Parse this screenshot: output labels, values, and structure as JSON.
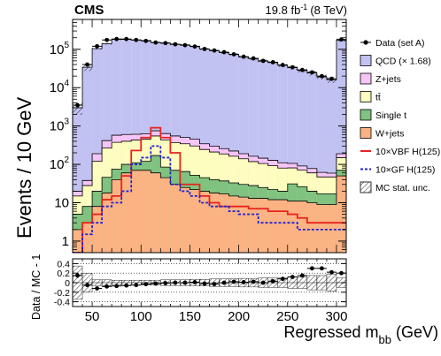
{
  "chart_data": {
    "type": "histogram",
    "header": {
      "experiment": "CMS",
      "lumi_value": "19.8 fb",
      "lumi_exp": "-1",
      "lumi_energy": "(8 TeV)"
    },
    "ylabel": "Events / 10 GeV",
    "xlabel": {
      "main": "Regressed m",
      "sub": "bb",
      "unit": " (GeV)"
    },
    "ratio_ylabel": "Data / MC - 1",
    "xlim": [
      30,
      310
    ],
    "ylim": [
      0.5,
      600000
    ],
    "yscale": "log",
    "ratio_ylim": [
      -0.5,
      0.5
    ],
    "bins": {
      "start": 30,
      "width": 10,
      "count": 28
    },
    "x_ticks": [
      50,
      100,
      150,
      200,
      250,
      300
    ],
    "y_ticks": [
      {
        "value": 1,
        "base": "1",
        "exp": ""
      },
      {
        "value": 10,
        "base": "10",
        "exp": ""
      },
      {
        "value": 100,
        "base": "10",
        "exp": "2"
      },
      {
        "value": 1000,
        "base": "10",
        "exp": "3"
      },
      {
        "value": 10000,
        "base": "10",
        "exp": "4"
      },
      {
        "value": 100000,
        "base": "10",
        "exp": "5"
      }
    ],
    "ratio_ticks": [
      "0.4",
      "0.2",
      "0",
      "-0.2",
      "-0.4"
    ],
    "ratio_tick_values": [
      0.4,
      0.2,
      0,
      -0.2,
      -0.4
    ],
    "stack": [
      {
        "name": "W+jets",
        "color": "#fcb384",
        "values": [
          2,
          3,
          8,
          18,
          40,
          60,
          70,
          70,
          60,
          45,
          30,
          25,
          22,
          20,
          18,
          17,
          15,
          14,
          13,
          13,
          12,
          12,
          11,
          11,
          10,
          9,
          9,
          50
        ]
      },
      {
        "name": "Single t",
        "color": "#80c27f",
        "values": [
          3,
          5,
          12,
          28,
          35,
          40,
          40,
          50,
          110,
          40,
          40,
          40,
          30,
          25,
          22,
          20,
          18,
          16,
          15,
          12,
          10,
          8,
          20,
          15,
          10,
          8,
          8,
          20
        ]
      },
      {
        "name": "tt",
        "color": "#fdfdbf",
        "values": [
          10,
          20,
          100,
          220,
          300,
          300,
          320,
          330,
          380,
          350,
          300,
          280,
          250,
          200,
          170,
          150,
          130,
          110,
          90,
          80,
          70,
          60,
          50,
          45,
          40,
          30,
          30,
          80
        ]
      },
      {
        "name": "Z+jets",
        "color": "#f6c5f7",
        "values": [
          5,
          10,
          70,
          150,
          200,
          200,
          180,
          180,
          200,
          200,
          180,
          160,
          150,
          100,
          90,
          70,
          60,
          50,
          45,
          40,
          35,
          30,
          25,
          20,
          18,
          15,
          12,
          40
        ]
      },
      {
        "name": "QCD (× 1.68)",
        "color": "#c1c1f2",
        "values": [
          2980,
          34000,
          104000,
          140000,
          180000,
          180000,
          174000,
          168000,
          150000,
          145000,
          134000,
          130000,
          120000,
          101000,
          92000,
          82000,
          73000,
          63000,
          57000,
          49000,
          45000,
          38000,
          33000,
          28000,
          24000,
          19000,
          16000,
          173000
        ]
      }
    ],
    "lines": [
      {
        "name": "10×VBF H(125)",
        "color": "#e8231f",
        "dash": "",
        "values": [
          0,
          3,
          5,
          12,
          15,
          50,
          230,
          500,
          900,
          500,
          200,
          30,
          30,
          15,
          10,
          8,
          8,
          8,
          7,
          7,
          6,
          6,
          5,
          4,
          3,
          3,
          3,
          3
        ]
      },
      {
        "name": "10×GF H(125)",
        "color": "#2323d0",
        "dash": "3,2",
        "values": [
          0,
          1.5,
          3,
          8,
          10,
          20,
          100,
          150,
          300,
          150,
          30,
          20,
          15,
          10,
          8,
          8,
          6,
          5,
          5,
          3,
          3,
          3,
          3,
          2,
          2,
          2,
          2,
          2
        ]
      }
    ],
    "data": {
      "name": "Data (set A)",
      "x": [
        35,
        45,
        55,
        65,
        75,
        85,
        95,
        105,
        115,
        125,
        135,
        145,
        155,
        165,
        175,
        185,
        195,
        205,
        215,
        225,
        235,
        245,
        255,
        265,
        275,
        285,
        295,
        305
      ],
      "y": [
        3500,
        40000,
        120000,
        175000,
        185000,
        185000,
        175000,
        165000,
        150000,
        145000,
        135000,
        128000,
        118000,
        102000,
        93000,
        84000,
        74000,
        64000,
        58000,
        50000,
        46000,
        39000,
        34000,
        29000,
        25000,
        20000,
        17000,
        180000
      ]
    },
    "ratio": {
      "x": [
        35,
        45,
        55,
        65,
        75,
        85,
        95,
        105,
        115,
        125,
        135,
        145,
        155,
        165,
        175,
        185,
        195,
        205,
        215,
        225,
        235,
        245,
        255,
        265,
        275,
        285,
        295,
        305
      ],
      "y": [
        0.15,
        -0.05,
        -0.12,
        -0.08,
        -0.07,
        -0.06,
        -0.05,
        -0.03,
        -0.02,
        -0.01,
        0.0,
        0.0,
        0.01,
        -0.02,
        -0.03,
        0.0,
        0.02,
        0.01,
        0.02,
        0.0,
        0.03,
        0.08,
        0.12,
        0.15,
        0.3,
        0.3,
        0.22,
        0.2
      ],
      "unc_lo": [
        -0.35,
        -0.2,
        -0.06,
        -0.06,
        -0.05,
        -0.05,
        -0.05,
        -0.05,
        -0.05,
        -0.06,
        -0.06,
        -0.06,
        -0.07,
        -0.07,
        -0.08,
        -0.08,
        -0.08,
        -0.09,
        -0.09,
        -0.1,
        -0.1,
        -0.1,
        -0.12,
        -0.12,
        -0.15,
        -0.15,
        -0.18,
        -0.1
      ],
      "unc_hi": [
        0.35,
        0.2,
        0.06,
        0.06,
        0.05,
        0.05,
        0.05,
        0.05,
        0.05,
        0.06,
        0.06,
        0.06,
        0.07,
        0.07,
        0.08,
        0.08,
        0.08,
        0.09,
        0.09,
        0.1,
        0.1,
        0.1,
        0.12,
        0.12,
        0.15,
        0.15,
        0.18,
        0.1
      ]
    },
    "legend": {
      "placement": "right",
      "entries": [
        {
          "kind": "marker",
          "label": "Data (set A)",
          "color": "#000000"
        },
        {
          "kind": "fill",
          "label": "QCD (× 1.68)",
          "color": "#c1c1f2"
        },
        {
          "kind": "fill",
          "label": "Z+jets",
          "color": "#f6c5f7"
        },
        {
          "kind": "fill",
          "label": "tt̄",
          "color": "#fdfdbf"
        },
        {
          "kind": "fill",
          "label": "Single t",
          "color": "#80c27f"
        },
        {
          "kind": "fill",
          "label": "W+jets",
          "color": "#fcb384"
        },
        {
          "kind": "line",
          "label": "10×VBF H(125)",
          "color": "#e8231f",
          "dash": ""
        },
        {
          "kind": "line",
          "label": "10×GF H(125)",
          "color": "#2323d0",
          "dash": "3,2"
        },
        {
          "kind": "hatch",
          "label": "MC stat. unc.",
          "color": "#000000"
        }
      ]
    }
  }
}
